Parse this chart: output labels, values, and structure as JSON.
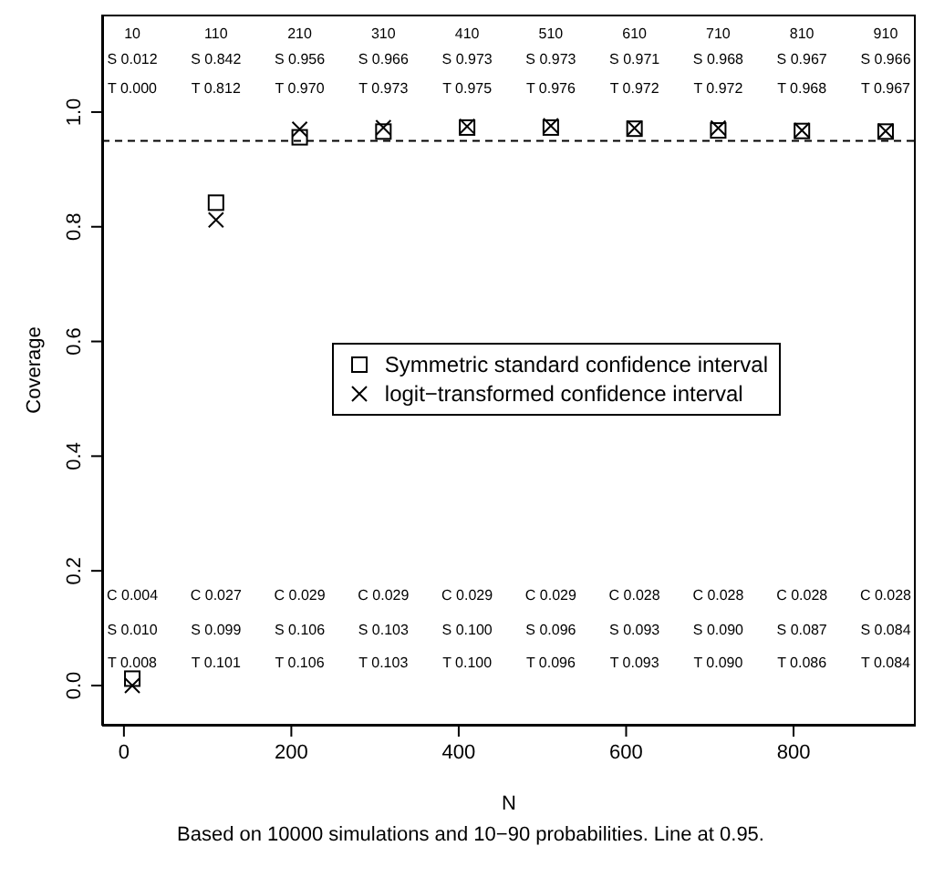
{
  "chart_data": {
    "type": "scatter",
    "xlabel": "N",
    "ylabel": "Coverage",
    "x": [
      10,
      110,
      210,
      310,
      410,
      510,
      610,
      710,
      810,
      910
    ],
    "series": [
      {
        "name": "Symmetric standard confidence interval",
        "color": "#000000",
        "marker": "square",
        "values": [
          0.012,
          0.842,
          0.956,
          0.966,
          0.973,
          0.973,
          0.971,
          0.968,
          0.967,
          0.966
        ]
      },
      {
        "name": "logit−transformed confidence interval",
        "color": "#000000",
        "marker": "cross",
        "values": [
          0.0,
          0.812,
          0.97,
          0.973,
          0.975,
          0.976,
          0.972,
          0.972,
          0.968,
          0.967
        ]
      }
    ],
    "xlim": [
      -26,
      946
    ],
    "xticks": [
      0,
      200,
      400,
      600,
      800
    ],
    "ylim": [
      -0.07,
      1.17
    ],
    "yticks": [
      {
        "value": 0,
        "label": "0.0"
      },
      {
        "value": 0.2,
        "label": "0.2"
      },
      {
        "value": 0.4,
        "label": "0.4"
      },
      {
        "value": 0.6,
        "label": "0.6"
      },
      {
        "value": 0.8,
        "label": "0.8"
      },
      {
        "value": 1,
        "label": "1.0"
      }
    ],
    "ref_lines": [
      {
        "axis": "y",
        "value": 0.95,
        "line_style": "dashed",
        "color": "#000000"
      }
    ],
    "legend": "right",
    "annotations": [
      "10",
      "110",
      "210",
      "310",
      "410",
      "510",
      "610",
      "710",
      "810",
      "910",
      "S 0.012",
      "S 0.842",
      "S 0.956",
      "S 0.966",
      "S 0.973",
      "S 0.973",
      "S 0.971",
      "S 0.968",
      "S 0.967",
      "S 0.966",
      "T 0.000",
      "T 0.812",
      "T 0.970",
      "T 0.973",
      "T 0.975",
      "T 0.976",
      "T 0.972",
      "T 0.972",
      "T 0.968",
      "T 0.967",
      "C 0.004",
      "C 0.027",
      "C 0.029",
      "C 0.029",
      "C 0.029",
      "C 0.029",
      "C 0.028",
      "C 0.028",
      "C 0.028",
      "C 0.028",
      "S 0.010",
      "S 0.099",
      "S 0.106",
      "S 0.103",
      "S 0.100",
      "S 0.096",
      "S 0.093",
      "S 0.090",
      "S 0.087",
      "S 0.084",
      "T 0.008",
      "T 0.101",
      "T 0.106",
      "T 0.103",
      "T 0.100",
      "T 0.096",
      "T 0.093",
      "T 0.090",
      "T 0.086",
      "T 0.084",
      "Based on 10000 simulations and 10−90 probabilities. Line at 0.95."
    ]
  }
}
